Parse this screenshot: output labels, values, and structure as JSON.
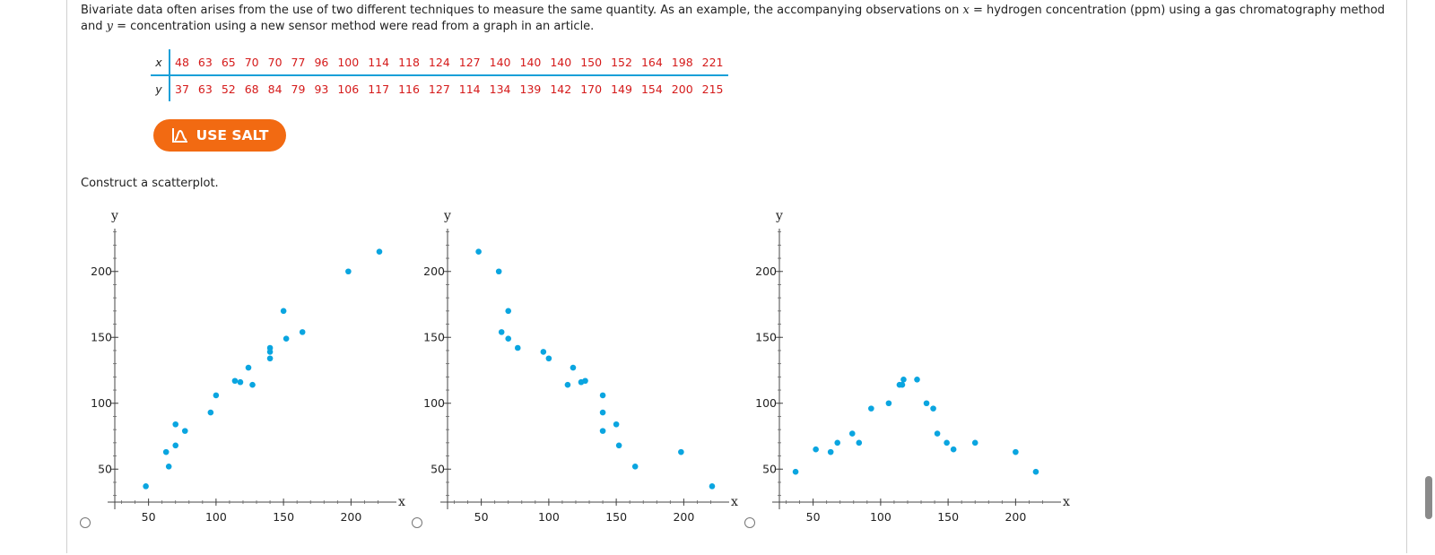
{
  "question": {
    "text_before_x": "Bivariate data often arises from the use of two different techniques to measure the same quantity. As an example, the accompanying observations on ",
    "var_x": "x",
    "text_mid": " = hydrogen concentration (ppm) using a gas chromatography method and ",
    "var_y": "y",
    "text_after": " = concentration using a new sensor method were read from a graph in an article."
  },
  "table": {
    "x_label": "x",
    "y_label": "y",
    "x_values": [
      "48",
      "63",
      "65",
      "70",
      "70",
      "77",
      "96",
      "100",
      "114",
      "118",
      "124",
      "127",
      "140",
      "140",
      "140",
      "150",
      "152",
      "164",
      "198",
      "221"
    ],
    "y_values": [
      "37",
      "63",
      "52",
      "68",
      "84",
      "79",
      "93",
      "106",
      "117",
      "116",
      "127",
      "114",
      "134",
      "139",
      "142",
      "170",
      "149",
      "154",
      "200",
      "215"
    ]
  },
  "salt_button": {
    "label": "USE SALT"
  },
  "instruction": "Construct a scatterplot.",
  "colors": {
    "point": "#0aa5e0",
    "accent_orange": "#f26a12",
    "table_value": "#d51a1a",
    "table_rule": "#1aa0d8"
  },
  "chart_data": [
    {
      "type": "scatter",
      "xlabel": "x",
      "ylabel": "y",
      "xlim": [
        25,
        230
      ],
      "ylim": [
        25,
        232
      ],
      "xticks": [
        50,
        100,
        150,
        200
      ],
      "yticks": [
        50,
        100,
        150,
        200
      ],
      "points": [
        [
          48,
          37
        ],
        [
          63,
          63
        ],
        [
          65,
          52
        ],
        [
          70,
          68
        ],
        [
          70,
          84
        ],
        [
          77,
          79
        ],
        [
          96,
          93
        ],
        [
          100,
          106
        ],
        [
          114,
          117
        ],
        [
          118,
          116
        ],
        [
          124,
          127
        ],
        [
          127,
          114
        ],
        [
          140,
          134
        ],
        [
          140,
          139
        ],
        [
          140,
          142
        ],
        [
          150,
          170
        ],
        [
          152,
          149
        ],
        [
          164,
          154
        ],
        [
          198,
          200
        ],
        [
          221,
          215
        ]
      ]
    },
    {
      "type": "scatter",
      "xlabel": "x",
      "ylabel": "y",
      "xlim": [
        25,
        230
      ],
      "ylim": [
        25,
        232
      ],
      "xticks": [
        50,
        100,
        150,
        200
      ],
      "yticks": [
        50,
        100,
        150,
        200
      ],
      "points": [
        [
          48,
          215
        ],
        [
          63,
          200
        ],
        [
          65,
          154
        ],
        [
          70,
          170
        ],
        [
          70,
          149
        ],
        [
          77,
          142
        ],
        [
          96,
          139
        ],
        [
          100,
          134
        ],
        [
          114,
          114
        ],
        [
          118,
          127
        ],
        [
          124,
          116
        ],
        [
          127,
          117
        ],
        [
          140,
          106
        ],
        [
          140,
          93
        ],
        [
          140,
          79
        ],
        [
          150,
          84
        ],
        [
          152,
          68
        ],
        [
          164,
          52
        ],
        [
          198,
          63
        ],
        [
          221,
          37
        ]
      ]
    },
    {
      "type": "scatter",
      "xlabel": "x",
      "ylabel": "y",
      "xlim": [
        25,
        230
      ],
      "ylim": [
        25,
        232
      ],
      "xticks": [
        50,
        100,
        150,
        200
      ],
      "yticks": [
        50,
        100,
        150,
        200
      ],
      "points": [
        [
          37,
          48
        ],
        [
          52,
          65
        ],
        [
          63,
          63
        ],
        [
          68,
          70
        ],
        [
          79,
          77
        ],
        [
          84,
          70
        ],
        [
          93,
          96
        ],
        [
          106,
          100
        ],
        [
          114,
          114
        ],
        [
          116,
          114
        ],
        [
          117,
          118
        ],
        [
          127,
          118
        ],
        [
          134,
          100
        ],
        [
          139,
          96
        ],
        [
          142,
          77
        ],
        [
          149,
          70
        ],
        [
          154,
          65
        ],
        [
          170,
          70
        ],
        [
          200,
          63
        ],
        [
          215,
          48
        ]
      ]
    }
  ]
}
